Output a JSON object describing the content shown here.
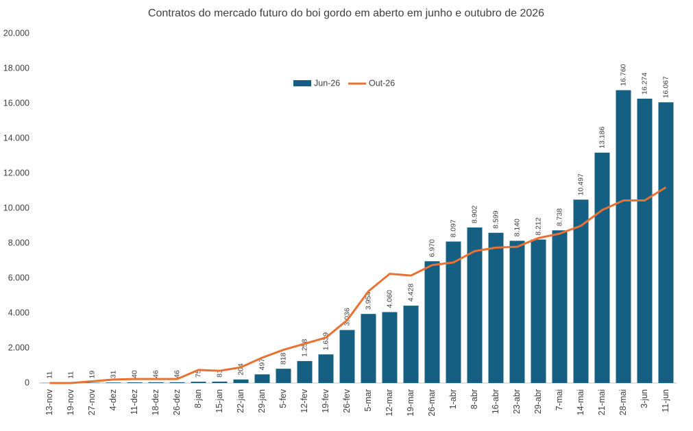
{
  "chart_data": {
    "type": "bar_line",
    "title": "Contratos do mercado futuro do boi gordo em aberto em junho  e outubro de 2026",
    "categories": [
      "13-nov",
      "19-nov",
      "27-nov",
      "4-dez",
      "11-dez",
      "18-dez",
      "26-dez",
      "8-jan",
      "15-jan",
      "22-jan",
      "29-jan",
      "5-fev",
      "12-fev",
      "19-fev",
      "26-fev",
      "5-mar",
      "12-mar",
      "19-mar",
      "26-mar",
      "1-abr",
      "8-abr",
      "16-abr",
      "23-abr",
      "29-abr",
      "7-mai",
      "14-mai",
      "21-mai",
      "28-mai",
      "3-jun",
      "11-jun"
    ],
    "series": [
      {
        "name": "Jun-26",
        "type": "bar",
        "color": "#156082",
        "values": [
          11,
          11,
          19,
          31,
          40,
          46,
          46,
          75,
          81,
          204,
          497,
          818,
          1258,
          1639,
          3036,
          3954,
          4060,
          4428,
          6970,
          8097,
          8902,
          8599,
          8140,
          8212,
          8738,
          10497,
          13186,
          16760,
          16274,
          16067
        ],
        "value_labels": [
          "11",
          "11",
          "19",
          "31",
          "40",
          "46",
          "46",
          "75",
          "81",
          "204",
          "497",
          "818",
          "1.258",
          "1.639",
          "3.036",
          "3.954",
          "4.060",
          "4.428",
          "6.970",
          "8.097",
          "8.902",
          "8.599",
          "8.140",
          "8.212",
          "8.738",
          "10.497",
          "13.186",
          "16.760",
          "16.274",
          "16.067"
        ]
      },
      {
        "name": "Out-26",
        "type": "line",
        "color": "#e97132",
        "values": [
          0,
          0,
          100,
          200,
          230,
          230,
          230,
          750,
          700,
          900,
          1450,
          1900,
          2250,
          2600,
          3600,
          5250,
          6250,
          6150,
          6750,
          6900,
          7550,
          7750,
          7800,
          8300,
          8550,
          9000,
          9900,
          10450,
          10450,
          11200
        ]
      }
    ],
    "ylim": [
      0,
      20000
    ],
    "yticks": [
      0,
      {
        "value": 2000,
        "label": "2.000"
      },
      {
        "value": 4000,
        "label": "4.000"
      },
      {
        "value": 6000,
        "label": "6.000"
      },
      {
        "value": 8000,
        "label": "8.000"
      },
      {
        "value": 10000,
        "label": "10.000"
      },
      {
        "value": 12000,
        "label": "12.000"
      },
      {
        "value": 14000,
        "label": "14.000"
      },
      {
        "value": 16000,
        "label": "16.000"
      },
      {
        "value": 18000,
        "label": "18.000"
      },
      {
        "value": 20000,
        "label": "20.000"
      }
    ],
    "grid": false
  }
}
